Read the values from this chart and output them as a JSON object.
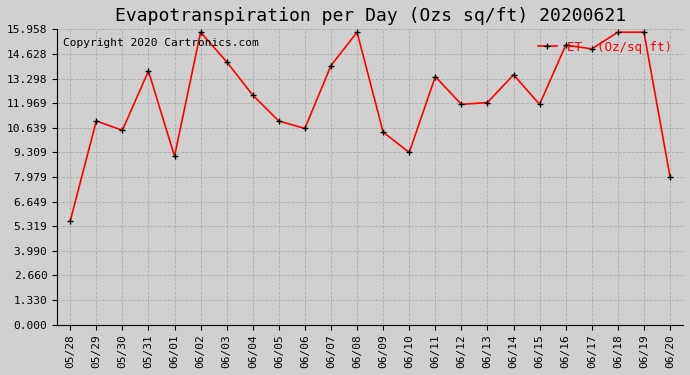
{
  "title": "Evapotranspiration per Day (Ozs sq/ft) 20200621",
  "copyright_text": "Copyright 2020 Cartronics.com",
  "legend_label": "ET  (Oz/sq ft)",
  "background_color": "#d0d0d0",
  "plot_bg_color": "#d0d0d0",
  "line_color": "red",
  "marker_color": "black",
  "categories": [
    "05/28",
    "05/29",
    "05/30",
    "05/31",
    "06/01",
    "06/02",
    "06/03",
    "06/04",
    "06/05",
    "06/06",
    "06/07",
    "06/08",
    "06/09",
    "06/10",
    "06/11",
    "06/12",
    "06/13",
    "06/14",
    "06/15",
    "06/16",
    "06/17",
    "06/18",
    "06/19",
    "06/20"
  ],
  "values": [
    5.6,
    11.0,
    10.5,
    13.7,
    9.1,
    15.8,
    14.2,
    12.4,
    11.0,
    10.6,
    14.0,
    15.8,
    10.4,
    9.3,
    13.4,
    11.9,
    12.0,
    13.5,
    11.9,
    15.1,
    14.9,
    15.8,
    15.8,
    8.0
  ],
  "yticks": [
    0.0,
    1.33,
    2.66,
    3.99,
    5.319,
    6.649,
    7.979,
    9.309,
    10.639,
    11.969,
    13.298,
    14.628,
    15.958
  ],
  "ylim": [
    0.0,
    15.958
  ],
  "grid_color": "#aaaaaa",
  "title_fontsize": 13,
  "tick_fontsize": 8,
  "legend_fontsize": 9,
  "copyright_fontsize": 8
}
